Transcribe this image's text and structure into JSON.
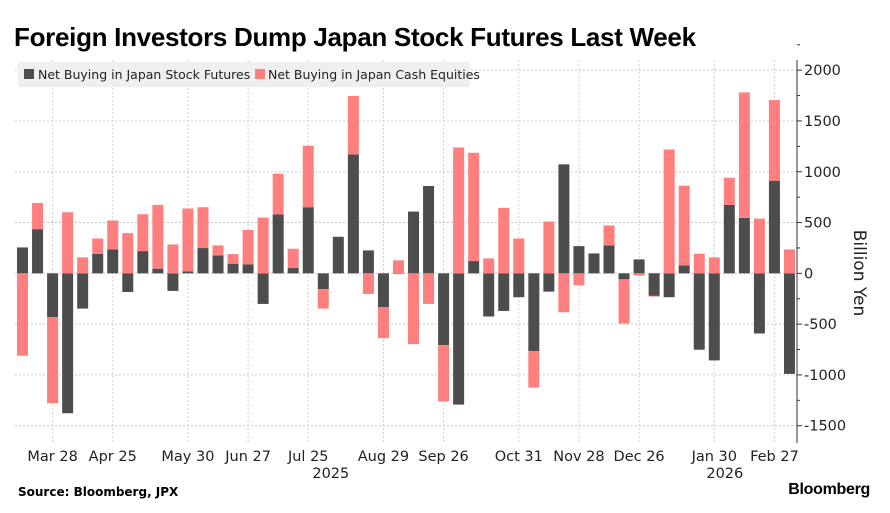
{
  "title": "Foreign Investors Dump Japan Stock Futures Last Week",
  "source": "Source: Bloomberg, JPX",
  "logo": "Bloomberg",
  "chart_data": {
    "type": "bar",
    "stacked": true,
    "title": "Foreign Investors Dump Japan Stock Futures Last Week",
    "ylabel": "Billion Yen",
    "ylim": [
      -1670,
      2100
    ],
    "yticks": [
      2000,
      1500,
      1000,
      500,
      0,
      -500,
      -1000,
      -1500
    ],
    "grid": true,
    "legend_position": "top-left",
    "x_tick_labels": [
      {
        "index": 2,
        "label": "Mar 28"
      },
      {
        "index": 6,
        "label": "Apr 25"
      },
      {
        "index": 11,
        "label": "May 30"
      },
      {
        "index": 15,
        "label": "Jun 27"
      },
      {
        "index": 19,
        "label": "Jul 25"
      },
      {
        "index": 24,
        "label": "Aug 29"
      },
      {
        "index": 28,
        "label": "Sep 26"
      },
      {
        "index": 33,
        "label": "Oct 31"
      },
      {
        "index": 37,
        "label": "Nov 28"
      },
      {
        "index": 41,
        "label": "Dec 26"
      },
      {
        "index": 46,
        "label": "Jan 30"
      },
      {
        "index": 50,
        "label": "Feb 27"
      }
    ],
    "year_labels": [
      {
        "index": 20.5,
        "label": "2025"
      },
      {
        "index": 46.7,
        "label": "2026"
      }
    ],
    "series": [
      {
        "name": "Net Buying in Japan Stock Futures",
        "color": "#4d4d4d",
        "values": [
          255,
          435,
          -432,
          -1377,
          -347,
          193,
          235,
          -183,
          219,
          46,
          -173,
          20,
          249,
          177,
          95,
          88,
          -301,
          579,
          52,
          651,
          -155,
          360,
          1171,
          226,
          -334,
          3,
          608,
          860,
          -706,
          -1292,
          121,
          -425,
          -370,
          -235,
          -765,
          -180,
          1073,
          268,
          196,
          275,
          -59,
          137,
          -222,
          -235,
          78,
          -752,
          -857,
          673,
          546,
          -592,
          912,
          -990
        ]
      },
      {
        "name": "Net Buying in Japan Cash Equities",
        "color": "#ff7f7f",
        "values": [
          -811,
          258,
          -847,
          602,
          157,
          150,
          285,
          396,
          363,
          628,
          285,
          618,
          402,
          98,
          95,
          340,
          549,
          402,
          190,
          605,
          -192,
          0,
          575,
          -203,
          -304,
          125,
          -697,
          -301,
          -556,
          1239,
          1066,
          147,
          644,
          343,
          -360,
          510,
          -383,
          -118,
          0,
          196,
          -435,
          -23,
          -7,
          1219,
          785,
          193,
          157,
          268,
          1235,
          539,
          794,
          235
        ]
      }
    ]
  }
}
